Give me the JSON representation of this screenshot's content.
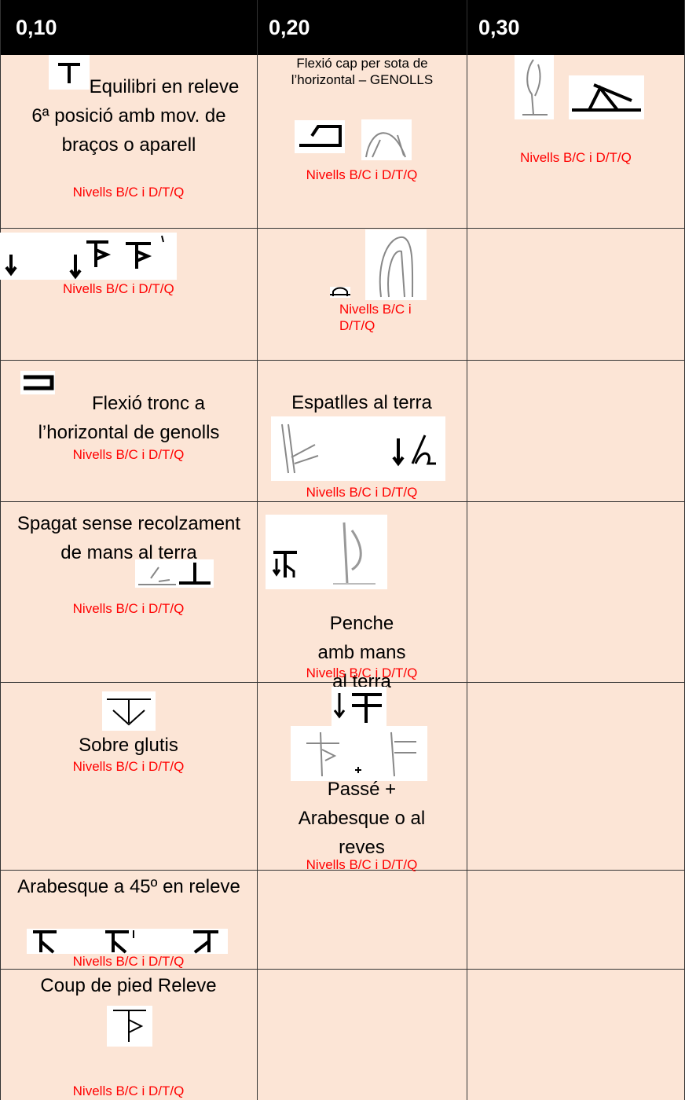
{
  "header": [
    "0,10",
    "0,20",
    "0,30"
  ],
  "rows": [
    [
      {
        "text": "Equilibri en releve 6ª posició amb mov. de braços o aparell",
        "levels": "Nivells B/C i D/T/Q"
      },
      {
        "text": "Flexió cap per sota de l’horizontal – GENOLLS",
        "levels": "Nivells B/C i D/T/Q"
      },
      {
        "levels": "Nivells B/C i D/T/Q"
      }
    ],
    [
      {
        "levels": "Nivells B/C i D/T/Q"
      },
      {
        "levels": "Nivells B/C i D/T/Q"
      }
    ],
    [
      {
        "text": "Flexió tronc a l’horizontal de genolls",
        "levels": "Nivells B/C i D/T/Q"
      },
      {
        "text": "Espatlles al terra",
        "levels": "Nivells B/C i D/T/Q"
      }
    ],
    [
      {
        "text": "Spagat sense recolzament de mans al terra",
        "levels": "Nivells B/C i D/T/Q"
      },
      {
        "text": "Penche amb mans al terra",
        "levels": "Nivells B/C i D/T/Q"
      }
    ],
    [
      {
        "text": "Sobre glutis",
        "levels": "Nivells B/C i D/T/Q"
      },
      {
        "text": "Passé + Arabesque o al reves",
        "levels": "Nivells B/C i D/T/Q"
      }
    ],
    [
      {
        "text": "Arabesque a 45º en releve",
        "levels": "Nivells B/C i D/T/Q"
      }
    ],
    [
      {
        "text": "Coup de pied Releve",
        "levels": "Nivells B/C i D/T/Q"
      }
    ]
  ]
}
